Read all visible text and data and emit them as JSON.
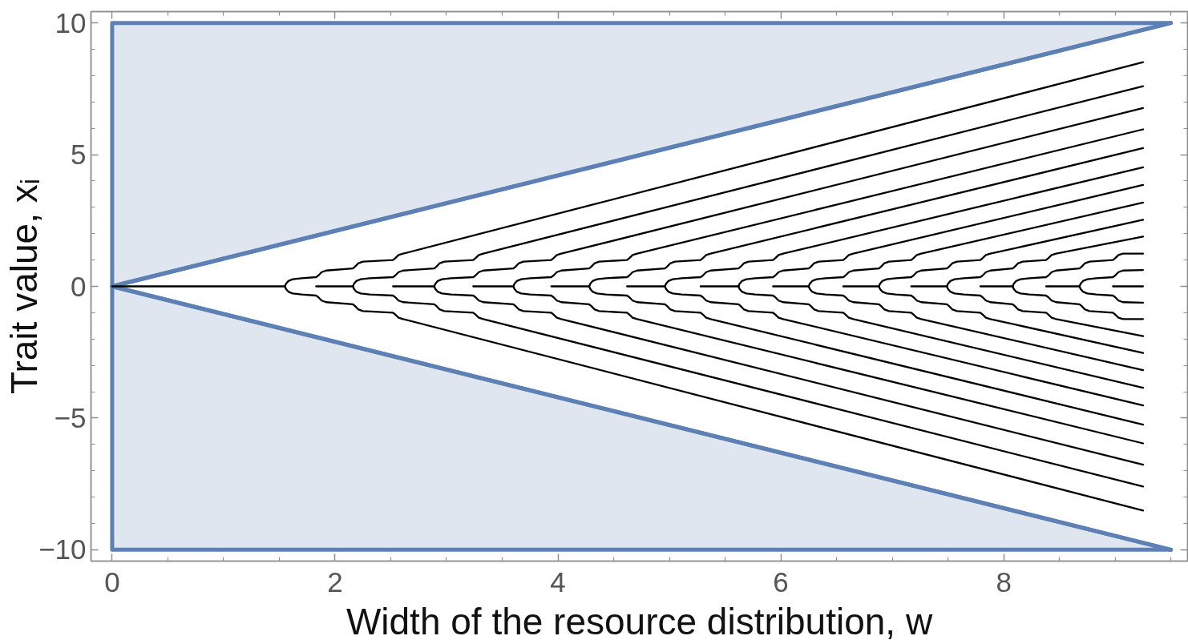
{
  "chart_data": {
    "type": "line",
    "xlabel": "Width of the resource distribution, w",
    "ylabel": "Trait value, xᵢ",
    "xlim": [
      -0.19,
      9.65
    ],
    "ylim": [
      -10.43,
      10.43
    ],
    "xticks": [
      0,
      {
        "value": 0.5,
        "label": null
      },
      {
        "value": 1,
        "label": null
      },
      {
        "value": 1.5,
        "label": null
      },
      2,
      {
        "value": 2.5,
        "label": null
      },
      {
        "value": 3,
        "label": null
      },
      {
        "value": 3.5,
        "label": null
      },
      4,
      {
        "value": 4.5,
        "label": null
      },
      {
        "value": 5,
        "label": null
      },
      {
        "value": 5.5,
        "label": null
      },
      6,
      {
        "value": 6.5,
        "label": null
      },
      {
        "value": 7,
        "label": null
      },
      {
        "value": 7.5,
        "label": null
      },
      8,
      {
        "value": 8.5,
        "label": null
      },
      {
        "value": 9,
        "label": null
      },
      {
        "value": 9.5,
        "label": null
      }
    ],
    "yticks": [
      {
        "value": -10,
        "label": "−10"
      },
      {
        "value": -9,
        "label": null
      },
      {
        "value": -8,
        "label": null
      },
      {
        "value": -7,
        "label": null
      },
      {
        "value": -6,
        "label": null
      },
      {
        "value": -5,
        "label": "−5"
      },
      {
        "value": -4,
        "label": null
      },
      {
        "value": -3,
        "label": null
      },
      {
        "value": -2,
        "label": null
      },
      {
        "value": -1,
        "label": null
      },
      0,
      {
        "value": 1,
        "label": null
      },
      {
        "value": 2,
        "label": null
      },
      {
        "value": 3,
        "label": null
      },
      {
        "value": 4,
        "label": null
      },
      5,
      {
        "value": 6,
        "label": null
      },
      {
        "value": 7,
        "label": null
      },
      {
        "value": 8,
        "label": null
      },
      {
        "value": 9,
        "label": null
      },
      10
    ],
    "series": [
      {
        "color": "#5e81b5",
        "x": [
          0,
          9.5
        ],
        "values": [
          0,
          10
        ],
        "lower": [
          0,
          10
        ],
        "upper": [
          10,
          10
        ]
      },
      {
        "color": "#5e81b5",
        "x": [
          0,
          9.5
        ],
        "values": [
          0,
          -10
        ],
        "lower": [
          -10,
          -10
        ],
        "upper": [
          0,
          -10
        ]
      },
      {
        "color": "#000000",
        "x": [
          0,
          1.55,
          1.69,
          1.83,
          2.16,
          2.34,
          2.52,
          2.89,
          3.06,
          3.24,
          3.6,
          3.77,
          3.94,
          4.28,
          4.45,
          4.62,
          4.96,
          5.12,
          5.28,
          5.62,
          5.78,
          5.93,
          6.25,
          6.4,
          6.56,
          6.88,
          7.02,
          7.17,
          7.49,
          7.64,
          7.79,
          8.08,
          8.23,
          8.38,
          8.68,
          8.83,
          8.98,
          9.25
        ],
        "values": [
          0,
          0,
          null,
          0,
          0,
          null,
          0,
          0,
          null,
          0,
          0,
          null,
          0,
          0,
          null,
          0,
          0,
          null,
          0,
          0,
          null,
          0,
          0,
          null,
          0,
          0,
          null,
          0,
          0,
          null,
          0,
          0,
          null,
          0,
          0,
          null,
          0,
          0
        ]
      },
      {
        "color": "#000000",
        "x": [
          1.55,
          1.56,
          1.58,
          1.62,
          1.7,
          1.83,
          1.85,
          1.88,
          1.92,
          2.16,
          2.18,
          2.21,
          2.25,
          2.52,
          2.54,
          2.57,
          2.61,
          9.25
        ],
        "values": [
          0,
          0.1,
          0.2,
          0.27,
          0.31,
          0.35,
          0.41,
          0.54,
          0.6,
          0.68,
          0.75,
          0.88,
          0.94,
          1.0,
          1.07,
          1.19,
          1.24,
          8.51
        ]
      },
      {
        "color": "#000000",
        "x": [
          2.16,
          2.17,
          2.19,
          2.23,
          2.31,
          2.52,
          2.54,
          2.57,
          2.61,
          2.89,
          2.91,
          2.94,
          2.98,
          3.24,
          3.26,
          3.29,
          3.33,
          9.25
        ],
        "values": [
          0,
          0.1,
          0.2,
          0.27,
          0.31,
          0.35,
          0.41,
          0.54,
          0.6,
          0.68,
          0.75,
          0.88,
          0.94,
          1.0,
          1.07,
          1.19,
          1.24,
          7.6
        ]
      },
      {
        "color": "#000000",
        "x": [
          2.89,
          2.9,
          2.92,
          2.96,
          3.04,
          3.24,
          3.26,
          3.29,
          3.33,
          3.6,
          3.62,
          3.65,
          3.69,
          3.94,
          3.96,
          3.99,
          4.03,
          9.25
        ],
        "values": [
          0,
          0.1,
          0.2,
          0.27,
          0.31,
          0.35,
          0.41,
          0.54,
          0.6,
          0.68,
          0.75,
          0.88,
          0.94,
          1.0,
          1.07,
          1.19,
          1.24,
          6.77
        ]
      },
      {
        "color": "#000000",
        "x": [
          3.6,
          3.61,
          3.63,
          3.67,
          3.75,
          3.94,
          3.96,
          3.99,
          4.03,
          4.28,
          4.3,
          4.33,
          4.37,
          4.62,
          4.64,
          4.67,
          4.71,
          9.25
        ],
        "values": [
          0,
          0.1,
          0.2,
          0.27,
          0.31,
          0.35,
          0.41,
          0.54,
          0.6,
          0.68,
          0.75,
          0.88,
          0.94,
          1.0,
          1.07,
          1.19,
          1.24,
          5.96
        ]
      },
      {
        "color": "#000000",
        "x": [
          4.28,
          4.29,
          4.31,
          4.35,
          4.43,
          4.62,
          4.64,
          4.67,
          4.71,
          4.96,
          4.98,
          5.01,
          5.05,
          5.28,
          5.3,
          5.33,
          5.37,
          9.25
        ],
        "values": [
          0,
          0.1,
          0.2,
          0.27,
          0.31,
          0.35,
          0.41,
          0.54,
          0.6,
          0.68,
          0.75,
          0.88,
          0.94,
          1.0,
          1.07,
          1.19,
          1.24,
          5.25
        ]
      },
      {
        "color": "#000000",
        "x": [
          4.96,
          4.97,
          4.99,
          5.03,
          5.11,
          5.28,
          5.3,
          5.33,
          5.37,
          5.62,
          5.64,
          5.67,
          5.71,
          5.93,
          5.95,
          5.98,
          6.02,
          9.25
        ],
        "values": [
          0,
          0.1,
          0.2,
          0.27,
          0.31,
          0.35,
          0.41,
          0.54,
          0.6,
          0.68,
          0.75,
          0.88,
          0.94,
          1.0,
          1.07,
          1.19,
          1.24,
          4.52
        ]
      },
      {
        "color": "#000000",
        "x": [
          5.62,
          5.63,
          5.65,
          5.69,
          5.77,
          5.93,
          5.95,
          5.98,
          6.02,
          6.25,
          6.27,
          6.3,
          6.34,
          6.56,
          6.58,
          6.61,
          6.65,
          9.25
        ],
        "values": [
          0,
          0.1,
          0.2,
          0.27,
          0.31,
          0.35,
          0.41,
          0.54,
          0.6,
          0.68,
          0.75,
          0.88,
          0.94,
          1.0,
          1.07,
          1.19,
          1.24,
          3.85
        ]
      },
      {
        "color": "#000000",
        "x": [
          6.25,
          6.26,
          6.28,
          6.32,
          6.4,
          6.56,
          6.58,
          6.61,
          6.65,
          6.88,
          6.9,
          6.93,
          6.97,
          7.17,
          7.19,
          7.22,
          7.26,
          9.25
        ],
        "values": [
          0,
          0.1,
          0.2,
          0.27,
          0.31,
          0.35,
          0.41,
          0.54,
          0.6,
          0.68,
          0.75,
          0.88,
          0.94,
          1.0,
          1.07,
          1.19,
          1.24,
          3.18
        ]
      },
      {
        "color": "#000000",
        "x": [
          6.88,
          6.89,
          6.91,
          6.95,
          7.03,
          7.17,
          7.19,
          7.22,
          7.26,
          7.49,
          7.51,
          7.54,
          7.58,
          7.79,
          7.81,
          7.84,
          7.88,
          9.25
        ],
        "values": [
          0,
          0.1,
          0.2,
          0.27,
          0.31,
          0.35,
          0.41,
          0.54,
          0.6,
          0.68,
          0.75,
          0.88,
          0.94,
          1.0,
          1.07,
          1.19,
          1.24,
          2.53
        ]
      },
      {
        "color": "#000000",
        "x": [
          7.49,
          7.5,
          7.52,
          7.56,
          7.64,
          7.79,
          7.81,
          7.84,
          7.88,
          8.08,
          8.1,
          8.13,
          8.17,
          8.38,
          8.4,
          8.43,
          8.47,
          9.25
        ],
        "values": [
          0,
          0.1,
          0.2,
          0.27,
          0.31,
          0.35,
          0.41,
          0.54,
          0.6,
          0.68,
          0.75,
          0.88,
          0.94,
          1.0,
          1.07,
          1.19,
          1.24,
          1.89
        ]
      },
      {
        "color": "#000000",
        "x": [
          8.08,
          8.09,
          8.11,
          8.15,
          8.23,
          8.38,
          8.4,
          8.43,
          8.47,
          8.68,
          8.7,
          8.73,
          8.77,
          8.98,
          9.0,
          9.03,
          9.07,
          9.25
        ],
        "values": [
          0,
          0.1,
          0.2,
          0.27,
          0.31,
          0.35,
          0.41,
          0.54,
          0.6,
          0.68,
          0.75,
          0.88,
          0.94,
          1.0,
          1.07,
          1.19,
          1.24,
          1.24
        ]
      },
      {
        "color": "#000000",
        "x": [
          8.68,
          8.69,
          8.71,
          8.75,
          8.83,
          8.98,
          9.0,
          9.03,
          9.07,
          9.25
        ],
        "values": [
          0,
          0.1,
          0.2,
          0.27,
          0.31,
          0.35,
          0.41,
          0.54,
          0.6,
          0.62
        ]
      },
      {
        "color": "#000000",
        "x": [
          1.55,
          1.56,
          1.58,
          1.62,
          1.7,
          1.83,
          1.85,
          1.88,
          1.92,
          2.16,
          2.18,
          2.21,
          2.25,
          2.52,
          2.54,
          2.57,
          2.61,
          9.25
        ],
        "values": [
          0,
          -0.1,
          -0.2,
          -0.27,
          -0.31,
          -0.35,
          -0.41,
          -0.54,
          -0.6,
          -0.68,
          -0.75,
          -0.88,
          -0.94,
          -1.0,
          -1.07,
          -1.19,
          -1.24,
          -8.51
        ]
      },
      {
        "color": "#000000",
        "x": [
          2.16,
          2.17,
          2.19,
          2.23,
          2.31,
          2.52,
          2.54,
          2.57,
          2.61,
          2.89,
          2.91,
          2.94,
          2.98,
          3.24,
          3.26,
          3.29,
          3.33,
          9.25
        ],
        "values": [
          0,
          -0.1,
          -0.2,
          -0.27,
          -0.31,
          -0.35,
          -0.41,
          -0.54,
          -0.6,
          -0.68,
          -0.75,
          -0.88,
          -0.94,
          -1.0,
          -1.07,
          -1.19,
          -1.24,
          -7.6
        ]
      },
      {
        "color": "#000000",
        "x": [
          2.89,
          2.9,
          2.92,
          2.96,
          3.04,
          3.24,
          3.26,
          3.29,
          3.33,
          3.6,
          3.62,
          3.65,
          3.69,
          3.94,
          3.96,
          3.99,
          4.03,
          9.25
        ],
        "values": [
          0,
          -0.1,
          -0.2,
          -0.27,
          -0.31,
          -0.35,
          -0.41,
          -0.54,
          -0.6,
          -0.68,
          -0.75,
          -0.88,
          -0.94,
          -1.0,
          -1.07,
          -1.19,
          -1.24,
          -6.77
        ]
      },
      {
        "color": "#000000",
        "x": [
          3.6,
          3.61,
          3.63,
          3.67,
          3.75,
          3.94,
          3.96,
          3.99,
          4.03,
          4.28,
          4.3,
          4.33,
          4.37,
          4.62,
          4.64,
          4.67,
          4.71,
          9.25
        ],
        "values": [
          0,
          -0.1,
          -0.2,
          -0.27,
          -0.31,
          -0.35,
          -0.41,
          -0.54,
          -0.6,
          -0.68,
          -0.75,
          -0.88,
          -0.94,
          -1.0,
          -1.07,
          -1.19,
          -1.24,
          -5.96
        ]
      },
      {
        "color": "#000000",
        "x": [
          4.28,
          4.29,
          4.31,
          4.35,
          4.43,
          4.62,
          4.64,
          4.67,
          4.71,
          4.96,
          4.98,
          5.01,
          5.05,
          5.28,
          5.3,
          5.33,
          5.37,
          9.25
        ],
        "values": [
          0,
          -0.1,
          -0.2,
          -0.27,
          -0.31,
          -0.35,
          -0.41,
          -0.54,
          -0.6,
          -0.68,
          -0.75,
          -0.88,
          -0.94,
          -1.0,
          -1.07,
          -1.19,
          -1.24,
          -5.25
        ]
      },
      {
        "color": "#000000",
        "x": [
          4.96,
          4.97,
          4.99,
          5.03,
          5.11,
          5.28,
          5.3,
          5.33,
          5.37,
          5.62,
          5.64,
          5.67,
          5.71,
          5.93,
          5.95,
          5.98,
          6.02,
          9.25
        ],
        "values": [
          0,
          -0.1,
          -0.2,
          -0.27,
          -0.31,
          -0.35,
          -0.41,
          -0.54,
          -0.6,
          -0.68,
          -0.75,
          -0.88,
          -0.94,
          -1.0,
          -1.07,
          -1.19,
          -1.24,
          -4.52
        ]
      },
      {
        "color": "#000000",
        "x": [
          5.62,
          5.63,
          5.65,
          5.69,
          5.77,
          5.93,
          5.95,
          5.98,
          6.02,
          6.25,
          6.27,
          6.3,
          6.34,
          6.56,
          6.58,
          6.61,
          6.65,
          9.25
        ],
        "values": [
          0,
          -0.1,
          -0.2,
          -0.27,
          -0.31,
          -0.35,
          -0.41,
          -0.54,
          -0.6,
          -0.68,
          -0.75,
          -0.88,
          -0.94,
          -1.0,
          -1.07,
          -1.19,
          -1.24,
          -3.85
        ]
      },
      {
        "color": "#000000",
        "x": [
          6.25,
          6.26,
          6.28,
          6.32,
          6.4,
          6.56,
          6.58,
          6.61,
          6.65,
          6.88,
          6.9,
          6.93,
          6.97,
          7.17,
          7.19,
          7.22,
          7.26,
          9.25
        ],
        "values": [
          0,
          -0.1,
          -0.2,
          -0.27,
          -0.31,
          -0.35,
          -0.41,
          -0.54,
          -0.6,
          -0.68,
          -0.75,
          -0.88,
          -0.94,
          -1.0,
          -1.07,
          -1.19,
          -1.24,
          -3.18
        ]
      },
      {
        "color": "#000000",
        "x": [
          6.88,
          6.89,
          6.91,
          6.95,
          7.03,
          7.17,
          7.19,
          7.22,
          7.26,
          7.49,
          7.51,
          7.54,
          7.58,
          7.79,
          7.81,
          7.84,
          7.88,
          9.25
        ],
        "values": [
          0,
          -0.1,
          -0.2,
          -0.27,
          -0.31,
          -0.35,
          -0.41,
          -0.54,
          -0.6,
          -0.68,
          -0.75,
          -0.88,
          -0.94,
          -1.0,
          -1.07,
          -1.19,
          -1.24,
          -2.53
        ]
      },
      {
        "color": "#000000",
        "x": [
          7.49,
          7.5,
          7.52,
          7.56,
          7.64,
          7.79,
          7.81,
          7.84,
          7.88,
          8.08,
          8.1,
          8.13,
          8.17,
          8.38,
          8.4,
          8.43,
          8.47,
          9.25
        ],
        "values": [
          0,
          -0.1,
          -0.2,
          -0.27,
          -0.31,
          -0.35,
          -0.41,
          -0.54,
          -0.6,
          -0.68,
          -0.75,
          -0.88,
          -0.94,
          -1.0,
          -1.07,
          -1.19,
          -1.24,
          -1.89
        ]
      },
      {
        "color": "#000000",
        "x": [
          8.08,
          8.09,
          8.11,
          8.15,
          8.23,
          8.38,
          8.4,
          8.43,
          8.47,
          8.68,
          8.7,
          8.73,
          8.77,
          8.98,
          9.0,
          9.03,
          9.07,
          9.25
        ],
        "values": [
          0,
          -0.1,
          -0.2,
          -0.27,
          -0.31,
          -0.35,
          -0.41,
          -0.54,
          -0.6,
          -0.68,
          -0.75,
          -0.88,
          -0.94,
          -1.0,
          -1.07,
          -1.19,
          -1.24,
          -1.24
        ]
      },
      {
        "color": "#000000",
        "x": [
          8.68,
          8.69,
          8.71,
          8.75,
          8.83,
          8.98,
          9.0,
          9.03,
          9.07,
          9.25
        ],
        "values": [
          0,
          -0.1,
          -0.2,
          -0.27,
          -0.31,
          -0.35,
          -0.41,
          -0.54,
          -0.6,
          -0.62
        ]
      }
    ]
  }
}
